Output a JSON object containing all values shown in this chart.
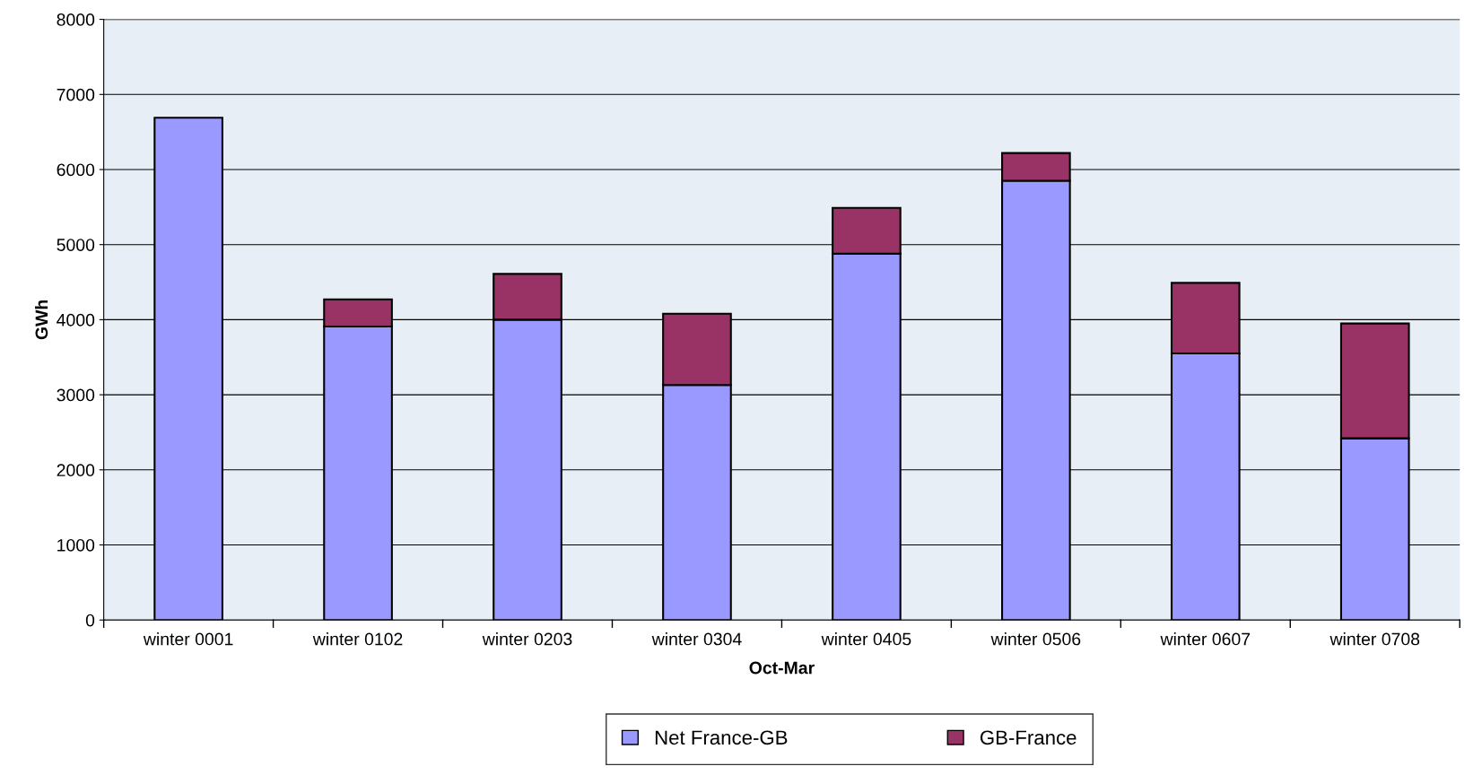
{
  "chart_data": {
    "type": "bar",
    "stacked": true,
    "xlabel": "Oct-Mar",
    "ylabel": "GWh",
    "categories": [
      "winter 0001",
      "winter 0102",
      "winter 0203",
      "winter 0304",
      "winter 0405",
      "winter 0506",
      "winter 0607",
      "winter 0708"
    ],
    "series": [
      {
        "name": "Net France-GB",
        "color": "#9999ff",
        "values": [
          6690,
          3910,
          4000,
          3130,
          4880,
          5850,
          3550,
          2420
        ]
      },
      {
        "name": "GB-France",
        "color": "#993366",
        "values": [
          null,
          360,
          610,
          950,
          610,
          370,
          940,
          1530
        ]
      }
    ],
    "ylim": [
      0,
      8000
    ],
    "yticks": [
      0,
      1000,
      2000,
      3000,
      4000,
      5000,
      6000,
      7000,
      8000
    ],
    "grid": "y",
    "legend": "bottom"
  }
}
